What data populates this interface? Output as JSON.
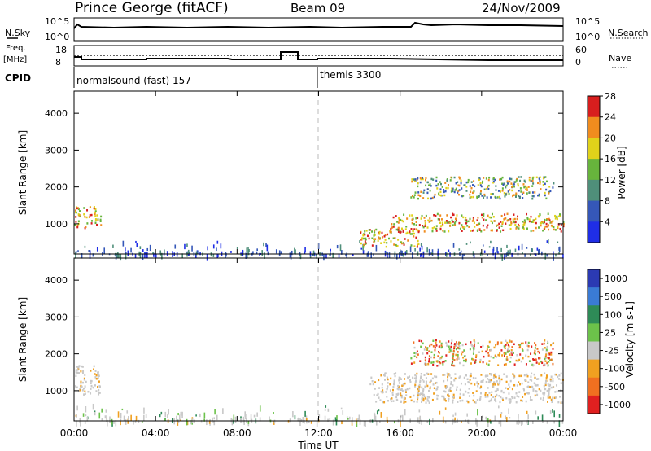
{
  "header": {
    "station": "Prince George (fitACF)",
    "beam": "Beam 09",
    "date": "24/Nov/2009"
  },
  "top_panels": {
    "nsky_label": "N.Sky",
    "nsky_ticks": [
      "10^5",
      "10^0"
    ],
    "nsearch_label": "N.Search",
    "freq_label_line1": "Freq.",
    "freq_label_line2": "[MHz]",
    "freq_ticks": [
      "18",
      "8"
    ],
    "nave_label": "Nave",
    "nave_ticks": [
      "60",
      "0"
    ],
    "cpid_label": "CPID",
    "cpid_modes": [
      "normalsound (fast) 157",
      "themis 3300"
    ]
  },
  "chart_data": [
    {
      "type": "heatmap",
      "panel": "power",
      "title": "",
      "xlabel": "Time UT",
      "ylabel": "Slant Range [km]",
      "x_ticks": [
        "00:00",
        "04:00",
        "08:00",
        "12:00",
        "16:00",
        "20:00",
        "00:00"
      ],
      "y_ticks": [
        1000,
        2000,
        3000,
        4000
      ],
      "ylim": [
        180,
        4600
      ],
      "colorbar_label": "Power [dB]",
      "colorbar_ticks": [
        "4",
        "8",
        "12",
        "16",
        "20",
        "24",
        "28"
      ],
      "colorbar_colors": [
        "#1f2ee6",
        "#3557b8",
        "#4f8f7a",
        "#67b43c",
        "#e0d21a",
        "#f08c1e",
        "#d81e1e"
      ],
      "scatter_regions": [
        {
          "t0": 0.0,
          "t1": 1.3,
          "r0": 900,
          "r1": 1500,
          "level": "high"
        },
        {
          "t0": 14.0,
          "t1": 17.0,
          "r0": 400,
          "r1": 900,
          "level": "high"
        },
        {
          "t0": 15.5,
          "t1": 24.0,
          "r0": 800,
          "r1": 1300,
          "level": "high"
        },
        {
          "t0": 16.5,
          "t1": 23.5,
          "r0": 1700,
          "r1": 2300,
          "level": "medium"
        }
      ]
    },
    {
      "type": "heatmap",
      "panel": "velocity",
      "title": "",
      "xlabel": "Time UT",
      "ylabel": "Slant Range [km]",
      "x_ticks": [
        "00:00",
        "04:00",
        "08:00",
        "12:00",
        "16:00",
        "20:00",
        "00:00"
      ],
      "y_ticks": [
        1000,
        2000,
        3000,
        4000
      ],
      "ylim": [
        180,
        4600
      ],
      "colorbar_label": "Velocity [m s-1]",
      "colorbar_ticks": [
        "1000",
        "500",
        "100",
        "25",
        "-25",
        "-100",
        "-500",
        "-1000"
      ],
      "colorbar_colors": [
        "#2b3ab3",
        "#3a7bd5",
        "#2e8b57",
        "#6cc24a",
        "#c8c8c8",
        "#f0a020",
        "#f07020",
        "#e02020"
      ],
      "scatter_regions": [
        {
          "t0": 0.0,
          "t1": 1.3,
          "r0": 900,
          "r1": 1700,
          "level": "ground"
        },
        {
          "t0": 14.5,
          "t1": 24.0,
          "r0": 700,
          "r1": 1500,
          "level": "ground"
        },
        {
          "t0": 16.5,
          "t1": 23.5,
          "r0": 1700,
          "r1": 2400,
          "level": "mixed"
        }
      ]
    }
  ]
}
